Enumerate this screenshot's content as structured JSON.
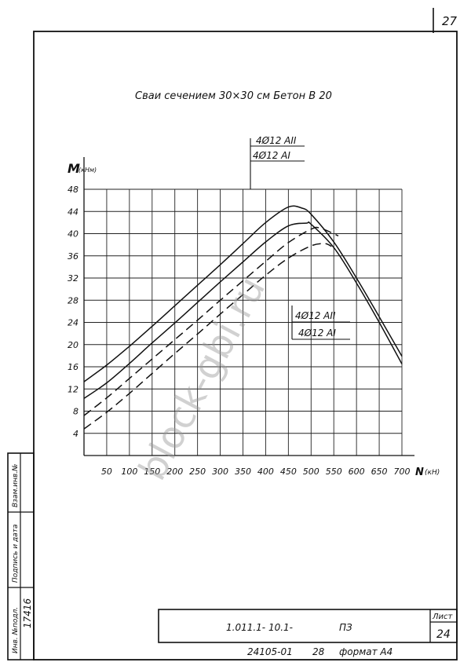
{
  "sheet": {
    "page_number": "27",
    "title_block": {
      "designation": "1.011.1- 10.1-",
      "doc_code": "ПЗ",
      "sheet_label": "Лист",
      "sheet_number": "24",
      "bottom_code": "24105-01",
      "bottom_num": "28",
      "format": "формат А4",
      "inventory_number": "17416",
      "side_labels": [
        "Инв. №подл.",
        "Подпись и дата",
        "Взам.инв.№"
      ]
    },
    "watermark": "block-gbi.ru"
  },
  "chart_data": {
    "type": "line",
    "title": "Сваи сечением 30×30 см Бетон В 20",
    "xlabel": "N (кН)",
    "ylabel": "M (кНм)",
    "ylabel_main": "M",
    "ylabel_unit": "(кНм)",
    "xlabel_main": "N",
    "xlabel_unit": "(кН)",
    "xlim": [
      0,
      700
    ],
    "ylim": [
      0,
      48
    ],
    "x_ticks": [
      50,
      100,
      150,
      200,
      250,
      300,
      350,
      400,
      450,
      500,
      550,
      600,
      650,
      700
    ],
    "x_tick_labels": [
      "50",
      "100",
      "150",
      "200",
      "250",
      "300",
      "350",
      "400",
      "450",
      "500",
      "550",
      "600",
      "650",
      "700"
    ],
    "y_ticks": [
      4,
      8,
      12,
      16,
      20,
      24,
      28,
      32,
      36,
      40,
      44,
      48
    ],
    "y_tick_labels": [
      "4",
      "8",
      "12",
      "16",
      "20",
      "24",
      "28",
      "32",
      "36",
      "40",
      "44",
      "48"
    ],
    "grid": true,
    "legend_groups": [
      {
        "position": "top",
        "items": [
          "4Ø12 АII",
          "4Ø12 АI"
        ]
      },
      {
        "position": "right",
        "items": [
          "4Ø12 АII",
          "4Ø12 АI"
        ]
      }
    ],
    "series": [
      {
        "style": "solid",
        "x": [
          0,
          50,
          100,
          150,
          200,
          250,
          300,
          350,
          400,
          450,
          480,
          500,
          550,
          600,
          650,
          700
        ],
        "y": [
          13.3,
          16.3,
          19.7,
          23.3,
          27.0,
          30.7,
          34.4,
          38.2,
          42.0,
          44.8,
          44.6,
          43.5,
          38.5,
          32.0,
          25.0,
          17.9
        ]
      },
      {
        "style": "solid",
        "x": [
          0,
          50,
          100,
          150,
          200,
          250,
          300,
          350,
          400,
          450,
          490,
          500,
          550,
          600,
          650,
          700
        ],
        "y": [
          10.3,
          13.1,
          16.6,
          20.3,
          23.9,
          27.6,
          31.3,
          34.9,
          38.5,
          41.4,
          41.9,
          41.7,
          37.5,
          31.1,
          24.0,
          16.5
        ]
      },
      {
        "style": "dashed",
        "x": [
          0,
          50,
          100,
          150,
          200,
          250,
          300,
          350,
          400,
          450,
          500,
          520,
          560
        ],
        "y": [
          7.2,
          10.4,
          13.9,
          17.4,
          20.9,
          24.4,
          28.0,
          31.5,
          35.0,
          38.4,
          40.8,
          41.0,
          39.6
        ]
      },
      {
        "style": "dashed",
        "x": [
          0,
          50,
          100,
          150,
          200,
          250,
          300,
          350,
          400,
          450,
          500,
          530,
          545
        ],
        "y": [
          4.8,
          7.8,
          11.2,
          14.8,
          18.4,
          21.9,
          25.5,
          29.0,
          32.5,
          35.6,
          37.8,
          38.2,
          37.7
        ]
      }
    ]
  }
}
